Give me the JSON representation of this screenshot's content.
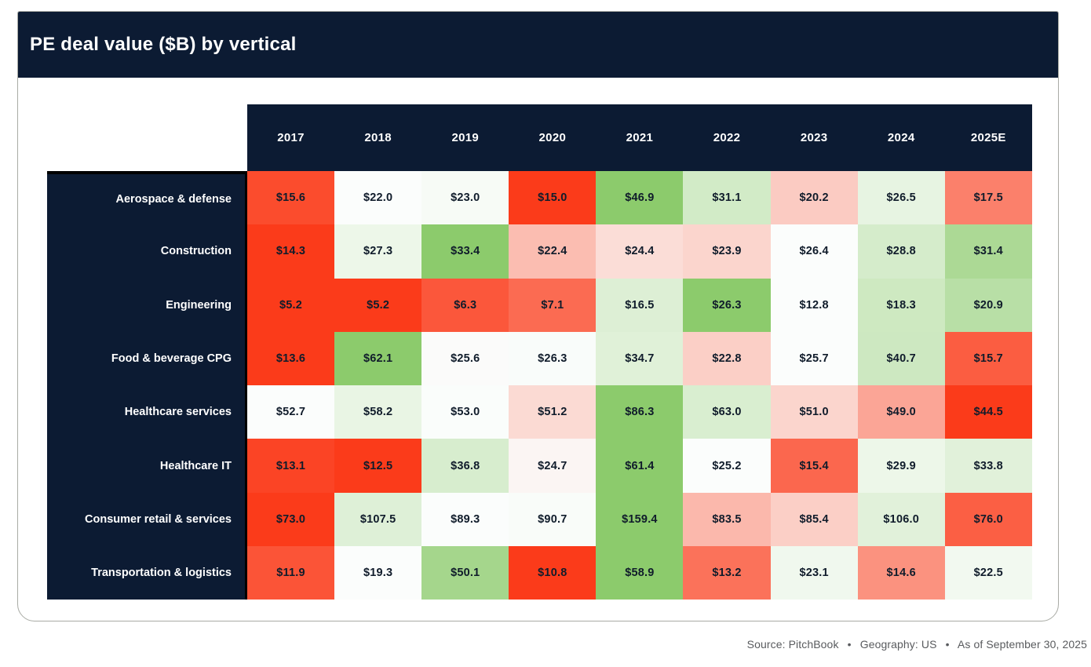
{
  "title": "PE deal value ($B) by vertical",
  "footer": "Source: PitchBook  •  Geography: US  •  As of September 30, 2025",
  "colors": {
    "navy_header": "#0c1b33",
    "axis_black": "#000000",
    "card_border": "#a9aba5",
    "cell_text": "#101c2b",
    "footer_text": "#595b5e"
  },
  "chart_data": {
    "type": "heatmap",
    "title": "PE deal value ($B) by vertical",
    "unit": "$B",
    "value_prefix": "$",
    "value_decimals": 1,
    "columns": [
      "2017",
      "2018",
      "2019",
      "2020",
      "2021",
      "2022",
      "2023",
      "2024",
      "2025E"
    ],
    "rows": [
      "Aerospace & defense",
      "Construction",
      "Engineering",
      "Food & beverage CPG",
      "Healthcare services",
      "Healthcare IT",
      "Consumer retail & services",
      "Transportation & logistics"
    ],
    "values": [
      [
        15.6,
        22.0,
        23.0,
        15.0,
        46.9,
        31.1,
        20.2,
        26.5,
        17.5
      ],
      [
        14.3,
        27.3,
        33.4,
        22.4,
        24.4,
        23.9,
        26.4,
        28.8,
        31.4
      ],
      [
        5.2,
        5.2,
        6.3,
        7.1,
        16.5,
        26.3,
        12.8,
        18.3,
        20.9
      ],
      [
        13.6,
        62.1,
        25.6,
        26.3,
        34.7,
        22.8,
        25.7,
        40.7,
        15.7
      ],
      [
        52.7,
        58.2,
        53.0,
        51.2,
        86.3,
        63.0,
        51.0,
        49.0,
        44.5
      ],
      [
        13.1,
        12.5,
        36.8,
        24.7,
        61.4,
        25.2,
        15.4,
        29.9,
        33.8
      ],
      [
        73.0,
        107.5,
        89.3,
        90.7,
        159.4,
        83.5,
        85.4,
        106.0,
        76.0
      ],
      [
        11.9,
        19.3,
        50.1,
        10.8,
        58.9,
        13.2,
        23.1,
        14.6,
        22.5
      ]
    ],
    "color_scale": {
      "mode": "diverging, per-row, centered on row median",
      "low": "#fb3b1a",
      "center": "#fbfdfc",
      "high": "#8ccb6c"
    },
    "legend": "none",
    "grid": "off"
  }
}
